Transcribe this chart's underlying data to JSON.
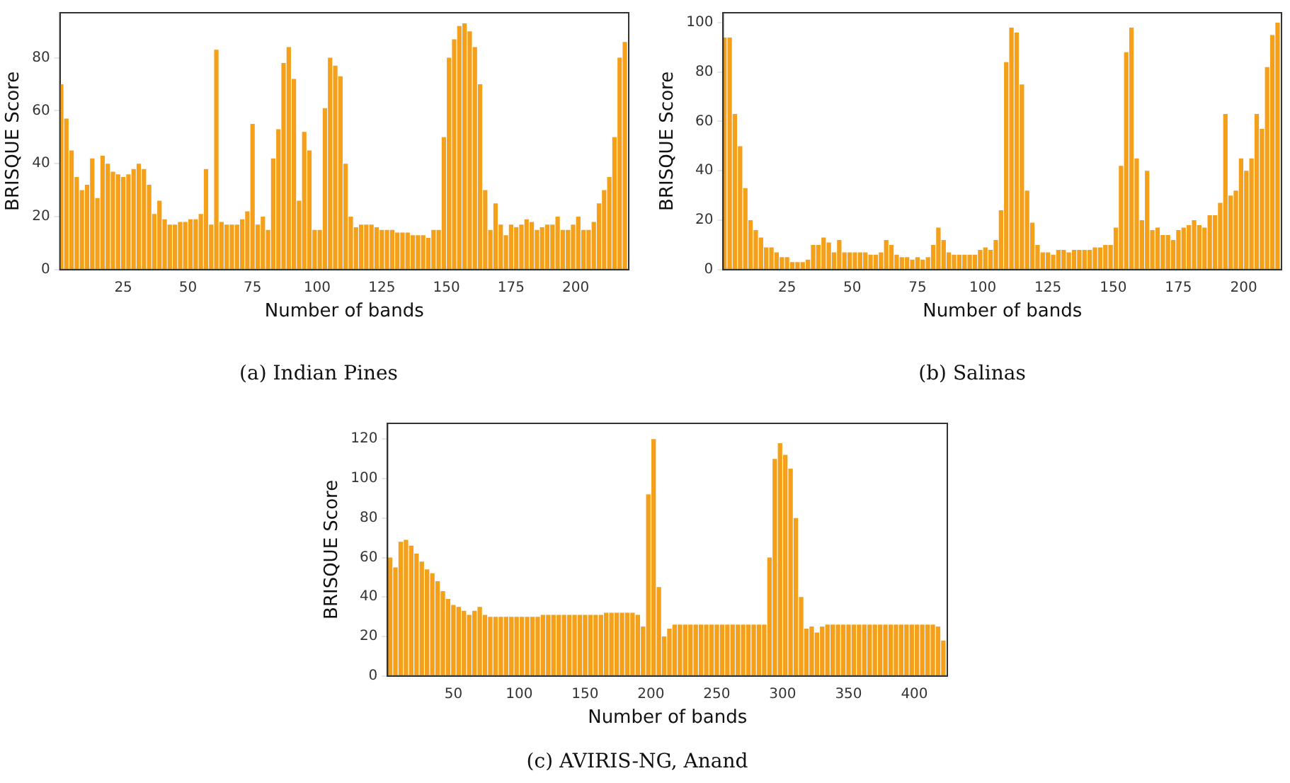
{
  "chart_data": [
    {
      "type": "bar",
      "xlabel": "Number of bands",
      "ylabel": "BRISQUE Score",
      "color": "#f5a01a",
      "grid": false,
      "annotations": [
        "(a) Indian Pines"
      ],
      "xlim": [
        0.5,
        220.5
      ],
      "ylim": [
        0,
        97
      ],
      "xticks": [
        25,
        50,
        75,
        100,
        125,
        150,
        175,
        200
      ],
      "yticks": [
        0,
        20,
        40,
        60,
        80
      ],
      "x": [
        1,
        3,
        5,
        7,
        9,
        11,
        13,
        15,
        17,
        19,
        21,
        23,
        25,
        27,
        29,
        31,
        33,
        35,
        37,
        39,
        41,
        43,
        45,
        47,
        49,
        51,
        53,
        55,
        57,
        59,
        61,
        63,
        65,
        67,
        69,
        71,
        73,
        75,
        77,
        79,
        81,
        83,
        85,
        87,
        89,
        91,
        93,
        95,
        97,
        99,
        101,
        103,
        105,
        107,
        109,
        111,
        113,
        115,
        117,
        119,
        121,
        123,
        125,
        127,
        129,
        131,
        133,
        135,
        137,
        139,
        141,
        143,
        145,
        147,
        149,
        151,
        153,
        155,
        157,
        159,
        161,
        163,
        165,
        167,
        169,
        171,
        173,
        175,
        177,
        179,
        181,
        183,
        185,
        187,
        189,
        191,
        193,
        195,
        197,
        199,
        201,
        203,
        205,
        207,
        209,
        211,
        213,
        215,
        217,
        219
      ],
      "values": [
        70,
        57,
        45,
        35,
        30,
        32,
        42,
        27,
        43,
        40,
        37,
        36,
        35,
        36,
        38,
        40,
        38,
        32,
        21,
        26,
        19,
        17,
        17,
        18,
        18,
        19,
        19,
        21,
        38,
        17,
        83,
        18,
        17,
        17,
        17,
        19,
        22,
        55,
        17,
        20,
        15,
        42,
        53,
        78,
        84,
        72,
        26,
        52,
        45,
        15,
        15,
        61,
        80,
        77,
        73,
        40,
        20,
        16,
        17,
        17,
        17,
        16,
        15,
        15,
        15,
        14,
        14,
        14,
        13,
        13,
        13,
        12,
        15,
        15,
        50,
        80,
        87,
        92,
        93,
        90,
        84,
        70,
        30,
        15,
        25,
        17,
        13,
        17,
        16,
        17,
        19,
        18,
        15,
        16,
        17,
        17,
        20,
        15,
        15,
        17,
        20,
        15,
        15,
        18,
        25,
        30,
        35,
        50,
        80,
        86
      ]
    },
    {
      "type": "bar",
      "xlabel": "Number of bands",
      "ylabel": "BRISQUE Score",
      "color": "#f5a01a",
      "grid": false,
      "annotations": [
        "(b) Salinas"
      ],
      "xlim": [
        0.5,
        214.5
      ],
      "ylim": [
        0,
        104
      ],
      "xticks": [
        25,
        50,
        75,
        100,
        125,
        150,
        175,
        200
      ],
      "yticks": [
        0,
        20,
        40,
        60,
        80,
        100
      ],
      "x": [
        1,
        3,
        5,
        7,
        9,
        11,
        13,
        15,
        17,
        19,
        21,
        23,
        25,
        27,
        29,
        31,
        33,
        35,
        37,
        39,
        41,
        43,
        45,
        47,
        49,
        51,
        53,
        55,
        57,
        59,
        61,
        63,
        65,
        67,
        69,
        71,
        73,
        75,
        77,
        79,
        81,
        83,
        85,
        87,
        89,
        91,
        93,
        95,
        97,
        99,
        101,
        103,
        105,
        107,
        109,
        111,
        113,
        115,
        117,
        119,
        121,
        123,
        125,
        127,
        129,
        131,
        133,
        135,
        137,
        139,
        141,
        143,
        145,
        147,
        149,
        151,
        153,
        155,
        157,
        159,
        161,
        163,
        165,
        167,
        169,
        171,
        173,
        175,
        177,
        179,
        181,
        183,
        185,
        187,
        189,
        191,
        193,
        195,
        197,
        199,
        201,
        203,
        205,
        207,
        209,
        211,
        213
      ],
      "values": [
        94,
        94,
        63,
        50,
        33,
        20,
        16,
        13,
        9,
        9,
        7,
        5,
        5,
        3,
        3,
        3,
        4,
        10,
        10,
        13,
        11,
        7,
        12,
        7,
        7,
        7,
        7,
        7,
        6,
        6,
        7,
        12,
        10,
        6,
        5,
        5,
        4,
        5,
        4,
        5,
        10,
        17,
        12,
        7,
        6,
        6,
        6,
        6,
        6,
        8,
        9,
        8,
        12,
        24,
        84,
        98,
        96,
        75,
        32,
        19,
        10,
        7,
        7,
        6,
        8,
        8,
        7,
        8,
        8,
        8,
        8,
        9,
        9,
        10,
        10,
        17,
        42,
        88,
        98,
        45,
        20,
        40,
        16,
        17,
        14,
        14,
        12,
        16,
        17,
        18,
        20,
        18,
        17,
        22,
        22,
        27,
        63,
        30,
        32,
        45,
        40,
        45,
        63,
        57,
        82,
        95,
        100
      ]
    },
    {
      "type": "bar",
      "xlabel": "Number of bands",
      "ylabel": "BRISQUE Score",
      "color": "#f5a01a",
      "grid": false,
      "annotations": [
        "(c) AVIRIS-NG, Anand"
      ],
      "xlim": [
        0,
        425
      ],
      "ylim": [
        0,
        128
      ],
      "xticks": [
        50,
        100,
        150,
        200,
        250,
        300,
        350,
        400
      ],
      "yticks": [
        0,
        20,
        40,
        60,
        80,
        100,
        120
      ],
      "x": [
        2,
        6,
        10,
        14,
        18,
        22,
        26,
        30,
        34,
        38,
        42,
        46,
        50,
        54,
        58,
        62,
        66,
        70,
        74,
        78,
        82,
        86,
        90,
        94,
        98,
        102,
        106,
        110,
        114,
        118,
        122,
        126,
        130,
        134,
        138,
        142,
        146,
        150,
        154,
        158,
        162,
        166,
        170,
        174,
        178,
        182,
        186,
        190,
        194,
        198,
        202,
        206,
        210,
        214,
        218,
        222,
        226,
        230,
        234,
        238,
        242,
        246,
        250,
        254,
        258,
        262,
        266,
        270,
        274,
        278,
        282,
        286,
        290,
        294,
        298,
        302,
        306,
        310,
        314,
        318,
        322,
        326,
        330,
        334,
        338,
        342,
        346,
        350,
        354,
        358,
        362,
        366,
        370,
        374,
        378,
        382,
        386,
        390,
        394,
        398,
        402,
        406,
        410,
        414,
        418,
        422
      ],
      "values": [
        60,
        55,
        68,
        69,
        66,
        62,
        58,
        54,
        52,
        48,
        43,
        39,
        36,
        35,
        33,
        31,
        33,
        35,
        31,
        30,
        30,
        30,
        30,
        30,
        30,
        30,
        30,
        30,
        30,
        31,
        31,
        31,
        31,
        31,
        31,
        31,
        31,
        31,
        31,
        31,
        31,
        32,
        32,
        32,
        32,
        32,
        32,
        31,
        25,
        92,
        120,
        45,
        20,
        24,
        26,
        26,
        26,
        26,
        26,
        26,
        26,
        26,
        26,
        26,
        26,
        26,
        26,
        26,
        26,
        26,
        26,
        26,
        60,
        110,
        118,
        112,
        105,
        80,
        40,
        24,
        25,
        22,
        25,
        26,
        26,
        26,
        26,
        26,
        26,
        26,
        26,
        26,
        26,
        26,
        26,
        26,
        26,
        26,
        26,
        26,
        26,
        26,
        26,
        26,
        25,
        18
      ]
    }
  ]
}
